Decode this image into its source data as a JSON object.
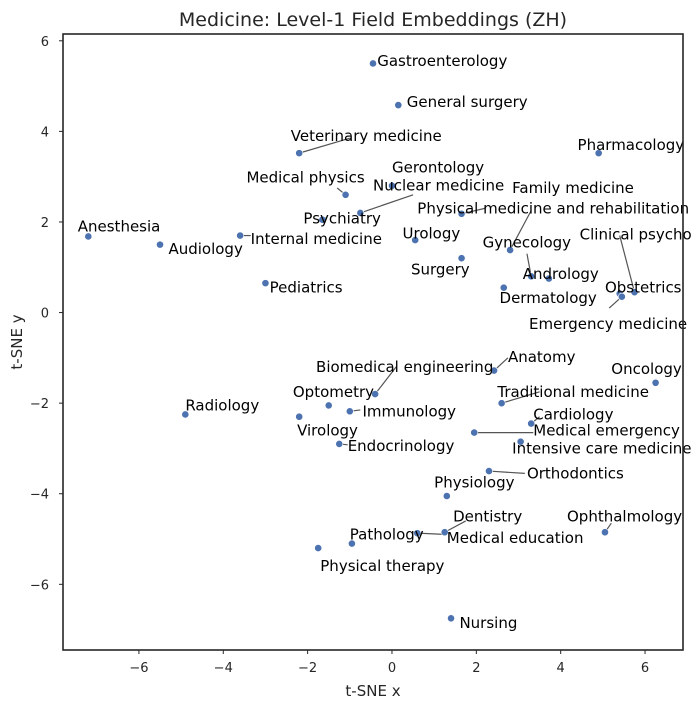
{
  "chart_data": {
    "type": "scatter",
    "title": "Medicine: Level-1 Field Embeddings (ZH)",
    "xlabel": "t-SNE x",
    "ylabel": "t-SNE y",
    "xlim": [
      -7.8,
      6.9
    ],
    "ylim": [
      -7.45,
      6.15
    ],
    "xticks": [
      -6,
      -4,
      -2,
      0,
      2,
      4,
      6
    ],
    "yticks": [
      -6,
      -4,
      -2,
      0,
      2,
      4,
      6
    ],
    "xtick_labels": [
      "−6",
      "−4",
      "−2",
      "0",
      "2",
      "4",
      "6"
    ],
    "ytick_labels": [
      "−6",
      "−4",
      "−2",
      "0",
      "2",
      "4",
      "6"
    ],
    "grid": false,
    "point_color": "#4c72b0",
    "points": [
      {
        "label": "Gastroenterology",
        "x": -0.45,
        "y": 5.5,
        "lx": -0.35,
        "ly": 5.55,
        "anchor": "start"
      },
      {
        "label": "General surgery",
        "x": 0.15,
        "y": 4.58,
        "lx": 0.35,
        "ly": 4.65,
        "anchor": "start"
      },
      {
        "label": "Veterinary medicine",
        "x": -2.2,
        "y": 3.52,
        "lx": -2.4,
        "ly": 3.9,
        "anchor": "start"
      },
      {
        "label": "Pharmacology",
        "x": 4.9,
        "y": 3.52,
        "lx": 4.4,
        "ly": 3.7,
        "anchor": "start"
      },
      {
        "label": "Medical physics",
        "x": -1.1,
        "y": 2.6,
        "lx": -3.45,
        "ly": 2.98,
        "anchor": "start"
      },
      {
        "label": "Gerontology",
        "x": 0.0,
        "y": 2.8,
        "lx": 0.0,
        "ly": 3.2,
        "anchor": "start"
      },
      {
        "label": "Nuclear medicine",
        "x": -0.75,
        "y": 2.2,
        "lx": -0.45,
        "ly": 2.8,
        "anchor": "start"
      },
      {
        "label": "Family medicine",
        "x": 2.8,
        "y": 1.38,
        "lx": 2.85,
        "ly": 2.75,
        "anchor": "start"
      },
      {
        "label": "Physical medicine and rehabilitation",
        "x": 1.65,
        "y": 2.18,
        "lx": 0.6,
        "ly": 2.3,
        "anchor": "start"
      },
      {
        "label": "Psychiatry",
        "x": -1.65,
        "y": 2.05,
        "lx": -2.1,
        "ly": 2.08,
        "anchor": "start"
      },
      {
        "label": "Anesthesia",
        "x": -7.2,
        "y": 1.68,
        "lx": -7.45,
        "ly": 1.9,
        "anchor": "start"
      },
      {
        "label": "Urology",
        "x": 0.55,
        "y": 1.6,
        "lx": 0.25,
        "ly": 1.75,
        "anchor": "start"
      },
      {
        "label": "Clinical psychology",
        "x": 5.75,
        "y": 0.45,
        "lx": 4.45,
        "ly": 1.72,
        "anchor": "start"
      },
      {
        "label": "Audiology",
        "x": -5.5,
        "y": 1.5,
        "lx": -5.3,
        "ly": 1.4,
        "anchor": "start"
      },
      {
        "label": "Internal medicine",
        "x": -3.6,
        "y": 1.7,
        "lx": -3.35,
        "ly": 1.62,
        "anchor": "start"
      },
      {
        "label": "Gynecology",
        "x": 3.3,
        "y": 0.8,
        "lx": 2.15,
        "ly": 1.55,
        "anchor": "start"
      },
      {
        "label": "Surgery",
        "x": 1.65,
        "y": 1.2,
        "lx": 0.45,
        "ly": 0.95,
        "anchor": "start"
      },
      {
        "label": "Andrology",
        "x": 3.72,
        "y": 0.75,
        "lx": 3.1,
        "ly": 0.85,
        "anchor": "start"
      },
      {
        "label": "Pediatrics",
        "x": -3.0,
        "y": 0.65,
        "lx": -2.9,
        "ly": 0.55,
        "anchor": "start"
      },
      {
        "label": "Obstetrics",
        "x": 5.4,
        "y": 0.42,
        "lx": 5.05,
        "ly": 0.55,
        "anchor": "start"
      },
      {
        "label": "Dermatology",
        "x": 2.65,
        "y": 0.55,
        "lx": 2.55,
        "ly": 0.32,
        "anchor": "start"
      },
      {
        "label": "Emergency medicine",
        "x": 5.45,
        "y": 0.35,
        "lx": 3.25,
        "ly": -0.25,
        "anchor": "start"
      },
      {
        "label": "Biomedical engineering",
        "x": -0.4,
        "y": -1.8,
        "lx": -1.8,
        "ly": -1.2,
        "anchor": "start"
      },
      {
        "label": "Anatomy",
        "x": 2.42,
        "y": -1.28,
        "lx": 2.75,
        "ly": -0.98,
        "anchor": "start"
      },
      {
        "label": "Oncology",
        "x": 6.25,
        "y": -1.55,
        "lx": 5.2,
        "ly": -1.25,
        "anchor": "start"
      },
      {
        "label": "Optometry",
        "x": -1.5,
        "y": -2.05,
        "lx": -2.35,
        "ly": -1.75,
        "anchor": "start"
      },
      {
        "label": "Traditional medicine",
        "x": 2.6,
        "y": -2.0,
        "lx": 2.5,
        "ly": -1.75,
        "anchor": "start"
      },
      {
        "label": "Radiology",
        "x": -4.9,
        "y": -2.25,
        "lx": -4.9,
        "ly": -2.05,
        "anchor": "start"
      },
      {
        "label": "Immunology",
        "x": -1.0,
        "y": -2.18,
        "lx": -0.7,
        "ly": -2.18,
        "anchor": "start"
      },
      {
        "label": "Cardiology",
        "x": 3.3,
        "y": -2.45,
        "lx": 3.35,
        "ly": -2.25,
        "anchor": "start"
      },
      {
        "label": "Virology",
        "x": -2.2,
        "y": -2.3,
        "lx": -2.25,
        "ly": -2.6,
        "anchor": "start"
      },
      {
        "label": "Medical emergency",
        "x": 1.95,
        "y": -2.65,
        "lx": 3.35,
        "ly": -2.6,
        "anchor": "start"
      },
      {
        "label": "Endocrinology",
        "x": -1.25,
        "y": -2.9,
        "lx": -1.05,
        "ly": -2.95,
        "anchor": "start"
      },
      {
        "label": "Intensive care medicine",
        "x": 3.05,
        "y": -2.85,
        "lx": 2.85,
        "ly": -3.0,
        "anchor": "start"
      },
      {
        "label": "Orthodontics",
        "x": 2.3,
        "y": -3.5,
        "lx": 3.2,
        "ly": -3.55,
        "anchor": "start"
      },
      {
        "label": "Physiology",
        "x": 1.3,
        "y": -4.05,
        "lx": 1.0,
        "ly": -3.75,
        "anchor": "start"
      },
      {
        "label": "Dentistry",
        "x": 1.25,
        "y": -4.85,
        "lx": 1.45,
        "ly": -4.5,
        "anchor": "start"
      },
      {
        "label": "Ophthalmology",
        "x": 5.05,
        "y": -4.85,
        "lx": 4.15,
        "ly": -4.5,
        "anchor": "start"
      },
      {
        "label": "Medical education",
        "x": 0.6,
        "y": -4.87,
        "lx": 1.3,
        "ly": -4.98,
        "anchor": "start"
      },
      {
        "label": "Pathology",
        "x": -0.95,
        "y": -5.1,
        "lx": -1.0,
        "ly": -4.9,
        "anchor": "start"
      },
      {
        "label": "Physical therapy",
        "x": -1.75,
        "y": -5.2,
        "lx": -1.7,
        "ly": -5.6,
        "anchor": "start"
      },
      {
        "label": "Nursing",
        "x": 1.4,
        "y": -6.75,
        "lx": 1.6,
        "ly": -6.85,
        "anchor": "start"
      }
    ],
    "leaders": [
      {
        "from": "Veterinary medicine",
        "to": [
          -1.0,
          3.85
        ]
      },
      {
        "from": "Medical physics",
        "to": [
          -1.3,
          2.75
        ]
      },
      {
        "from": "Nuclear medicine",
        "to": [
          0.5,
          2.6
        ]
      },
      {
        "from": "Family medicine",
        "to": [
          3.3,
          2.25
        ]
      },
      {
        "from": "Physical medicine and rehabilitation",
        "to": [
          2.2,
          2.3
        ]
      },
      {
        "from": "Psychiatry",
        "to": [
          -1.55,
          2.1
        ]
      },
      {
        "from": "Clinical psychology",
        "to": [
          5.4,
          1.7
        ]
      },
      {
        "from": "Internal medicine",
        "to": [
          -3.35,
          1.7
        ]
      },
      {
        "from": "Gynecology",
        "to": [
          3.2,
          1.3
        ]
      },
      {
        "from": "Emergency medicine",
        "to": [
          5.15,
          0.1
        ]
      },
      {
        "from": "Biomedical engineering",
        "to": [
          0.1,
          -1.2
        ]
      },
      {
        "from": "Anatomy",
        "to": [
          2.75,
          -1.0
        ]
      },
      {
        "from": "Traditional medicine",
        "to": [
          3.5,
          -1.75
        ]
      },
      {
        "from": "Immunology",
        "to": [
          -0.75,
          -2.15
        ]
      },
      {
        "from": "Cardiology",
        "to": [
          3.5,
          -2.3
        ]
      },
      {
        "from": "Medical emergency",
        "to": [
          3.35,
          -2.65
        ]
      },
      {
        "from": "Intensive care medicine",
        "to": [
          3.1,
          -2.95
        ]
      },
      {
        "from": "Orthodontics",
        "to": [
          3.15,
          -3.55
        ]
      },
      {
        "from": "Dentistry",
        "to": [
          1.75,
          -4.6
        ]
      },
      {
        "from": "Ophthalmology",
        "to": [
          5.2,
          -4.65
        ]
      },
      {
        "from": "Medical education",
        "to": [
          1.3,
          -4.9
        ]
      },
      {
        "from": "Endocrinology",
        "to": [
          -1.05,
          -2.92
        ]
      }
    ]
  }
}
